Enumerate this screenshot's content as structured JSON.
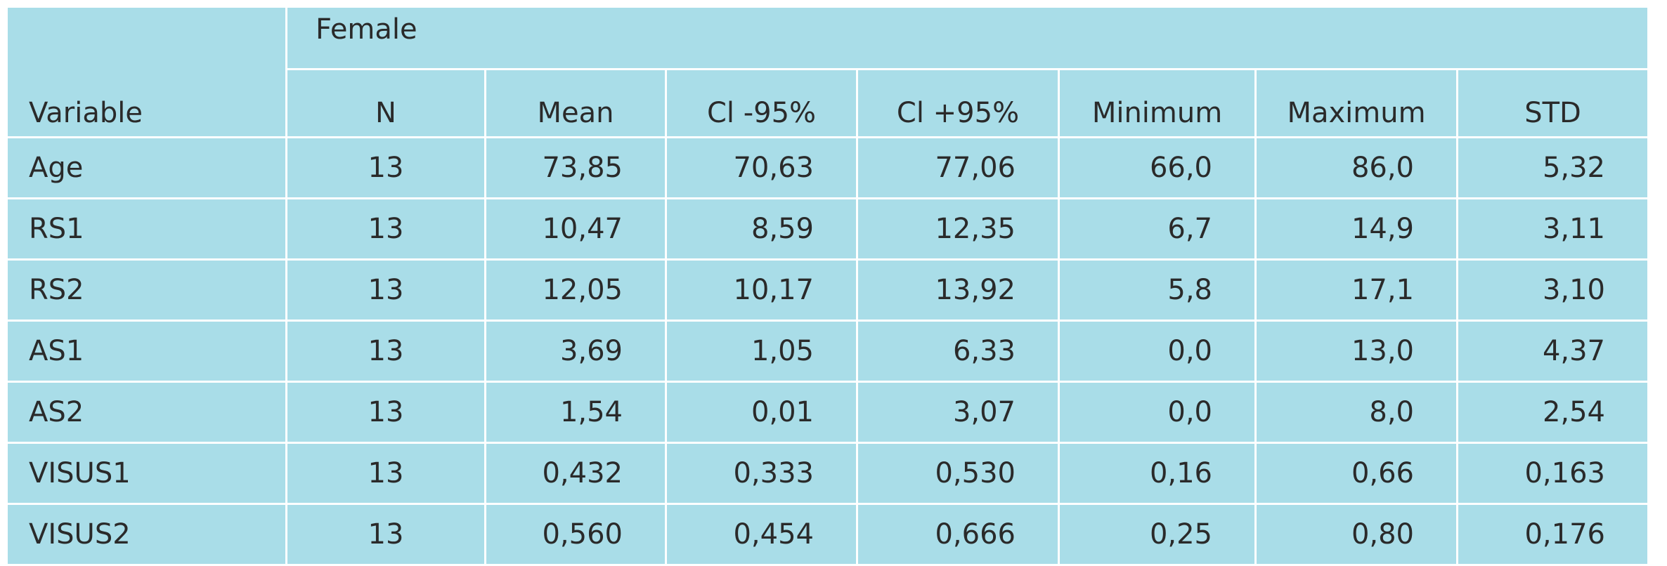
{
  "header": {
    "group": "Female"
  },
  "table": {
    "columns": [
      "Variable",
      "N",
      "Mean",
      "Cl -95%",
      "Cl +95%",
      "Minimum",
      "Maximum",
      "STD"
    ],
    "rows": [
      [
        "Age",
        "13",
        "73,85",
        "70,63",
        "77,06",
        "66,0",
        "86,0",
        "5,32"
      ],
      [
        "RS1",
        "13",
        "10,47",
        "8,59",
        "12,35",
        "6,7",
        "14,9",
        "3,11"
      ],
      [
        "RS2",
        "13",
        "12,05",
        "10,17",
        "13,92",
        "5,8",
        "17,1",
        "3,10"
      ],
      [
        "AS1",
        "13",
        "3,69",
        "1,05",
        "6,33",
        "0,0",
        "13,0",
        "4,37"
      ],
      [
        "AS2",
        "13",
        "1,54",
        "0,01",
        "3,07",
        "0,0",
        "8,0",
        "2,54"
      ],
      [
        "VISUS1",
        "13",
        "0,432",
        "0,333",
        "0,530",
        "0,16",
        "0,66",
        "0,163"
      ],
      [
        "VISUS2",
        "13",
        "0,560",
        "0,454",
        "0,666",
        "0,25",
        "0,80",
        "0,176"
      ]
    ]
  }
}
